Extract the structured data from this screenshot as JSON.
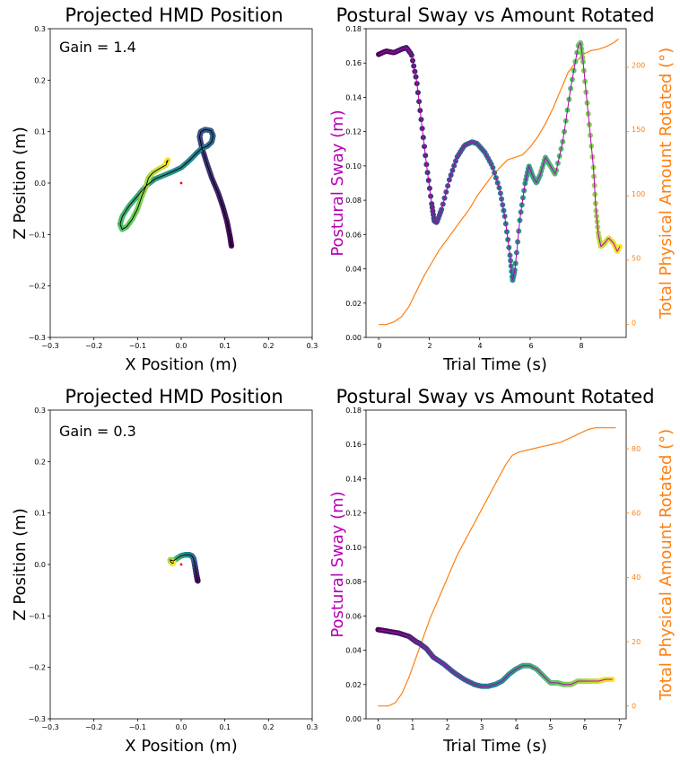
{
  "colors": {
    "sway_label": "#b700b7",
    "rotated": "#ff7f0e",
    "origin": "#ff0000",
    "axis": "#000000"
  },
  "chart_data": [
    {
      "type": "scatter",
      "title": "Projected HMD Position",
      "annotation": "Gain = 1.4",
      "xlabel": "X Position (m)",
      "ylabel": "Z Position (m)",
      "xlim": [
        -0.3,
        0.3
      ],
      "ylim": [
        -0.3,
        0.3
      ],
      "xticks": [
        "−0.3",
        "−0.2",
        "−0.1",
        "0.0",
        "0.1",
        "0.2",
        "0.3"
      ],
      "yticks": [
        "−0.3",
        "−0.2",
        "−0.1",
        "0.0",
        "0.1",
        "0.2",
        "0.3"
      ],
      "origin": [
        0.0,
        0.0
      ],
      "path": [
        [
          0.115,
          -0.122
        ],
        [
          0.112,
          -0.105
        ],
        [
          0.105,
          -0.075
        ],
        [
          0.095,
          -0.045
        ],
        [
          0.085,
          -0.02
        ],
        [
          0.07,
          0.01
        ],
        [
          0.058,
          0.04
        ],
        [
          0.047,
          0.07
        ],
        [
          0.042,
          0.09
        ],
        [
          0.045,
          0.1
        ],
        [
          0.055,
          0.104
        ],
        [
          0.068,
          0.102
        ],
        [
          0.073,
          0.092
        ],
        [
          0.07,
          0.08
        ],
        [
          0.06,
          0.072
        ],
        [
          0.048,
          0.068
        ],
        [
          0.035,
          0.058
        ],
        [
          0.02,
          0.045
        ],
        [
          0.0,
          0.03
        ],
        [
          -0.02,
          0.022
        ],
        [
          -0.04,
          0.015
        ],
        [
          -0.06,
          0.008
        ],
        [
          -0.08,
          -0.005
        ],
        [
          -0.1,
          -0.025
        ],
        [
          -0.12,
          -0.045
        ],
        [
          -0.135,
          -0.065
        ],
        [
          -0.14,
          -0.08
        ],
        [
          -0.135,
          -0.09
        ],
        [
          -0.125,
          -0.085
        ],
        [
          -0.112,
          -0.07
        ],
        [
          -0.1,
          -0.05
        ],
        [
          -0.09,
          -0.025
        ],
        [
          -0.08,
          -0.005
        ],
        [
          -0.075,
          0.01
        ],
        [
          -0.065,
          0.02
        ],
        [
          -0.05,
          0.028
        ],
        [
          -0.035,
          0.035
        ],
        [
          -0.03,
          0.045
        ],
        [
          -0.035,
          0.04
        ]
      ]
    },
    {
      "type": "line",
      "title": "Postural Sway vs Amount Rotated",
      "xlabel": "Trial Time (s)",
      "ylabel": "Postural Sway (m)",
      "y2label": "Total Physical Amount Rotated (°)",
      "xlim": [
        -0.5,
        9.8
      ],
      "ylim": [
        0.0,
        0.18
      ],
      "y2lim": [
        -10,
        230
      ],
      "xticks": [
        0,
        2,
        4,
        6,
        8
      ],
      "yticks": [
        "0.00",
        "0.02",
        "0.04",
        "0.06",
        "0.08",
        "0.10",
        "0.12",
        "0.14",
        "0.16",
        "0.18"
      ],
      "y2ticks": [
        0,
        50,
        100,
        150,
        200
      ],
      "series": [
        {
          "name": "Postural Sway",
          "x": [
            0,
            0.3,
            0.6,
            0.9,
            1.1,
            1.3,
            1.5,
            1.7,
            1.9,
            2.1,
            2.2,
            2.3,
            2.5,
            2.8,
            3.1,
            3.4,
            3.7,
            3.9,
            4.2,
            4.5,
            4.8,
            5.0,
            5.2,
            5.3,
            5.4,
            5.6,
            5.8,
            5.95,
            6.1,
            6.25,
            6.4,
            6.6,
            6.8,
            7.0,
            7.3,
            7.6,
            7.9,
            8.0,
            8.1,
            8.3,
            8.5,
            8.6,
            8.7,
            8.8,
            8.95,
            9.1,
            9.3,
            9.45,
            9.55
          ],
          "y": [
            0.165,
            0.167,
            0.166,
            0.168,
            0.169,
            0.165,
            0.15,
            0.125,
            0.1,
            0.078,
            0.068,
            0.067,
            0.075,
            0.092,
            0.105,
            0.112,
            0.114,
            0.113,
            0.108,
            0.1,
            0.086,
            0.07,
            0.048,
            0.033,
            0.04,
            0.07,
            0.09,
            0.1,
            0.094,
            0.09,
            0.095,
            0.105,
            0.1,
            0.095,
            0.115,
            0.145,
            0.17,
            0.172,
            0.16,
            0.13,
            0.1,
            0.075,
            0.06,
            0.053,
            0.055,
            0.058,
            0.055,
            0.05,
            0.053
          ]
        },
        {
          "name": "Total Physical Amount Rotated",
          "x": [
            0,
            0.3,
            0.6,
            0.9,
            1.2,
            1.5,
            1.8,
            2.1,
            2.4,
            2.7,
            3.0,
            3.3,
            3.6,
            3.9,
            4.2,
            4.5,
            4.8,
            5.1,
            5.4,
            5.7,
            6.0,
            6.3,
            6.6,
            6.9,
            7.2,
            7.5,
            7.8,
            8.1,
            8.4,
            8.7,
            9.0,
            9.3,
            9.5
          ],
          "y": [
            0,
            0,
            2,
            6,
            14,
            26,
            38,
            48,
            58,
            66,
            74,
            82,
            90,
            100,
            108,
            116,
            122,
            128,
            130,
            132,
            138,
            146,
            156,
            168,
            182,
            196,
            204,
            210,
            213,
            214,
            216,
            219,
            222
          ]
        }
      ]
    },
    {
      "type": "scatter",
      "title": "Projected HMD Position",
      "annotation": "Gain = 0.3",
      "xlabel": "X Position (m)",
      "ylabel": "Z Position (m)",
      "xlim": [
        -0.3,
        0.3
      ],
      "ylim": [
        -0.3,
        0.3
      ],
      "xticks": [
        "−0.3",
        "−0.2",
        "−0.1",
        "0.0",
        "0.1",
        "0.2",
        "0.3"
      ],
      "yticks": [
        "−0.3",
        "−0.2",
        "−0.1",
        "0.0",
        "0.1",
        "0.2",
        "0.3"
      ],
      "origin": [
        0.0,
        0.0
      ],
      "path": [
        [
          0.038,
          -0.032
        ],
        [
          0.036,
          -0.025
        ],
        [
          0.034,
          -0.015
        ],
        [
          0.032,
          -0.005
        ],
        [
          0.03,
          0.005
        ],
        [
          0.028,
          0.012
        ],
        [
          0.024,
          0.017
        ],
        [
          0.018,
          0.019
        ],
        [
          0.01,
          0.019
        ],
        [
          0.0,
          0.017
        ],
        [
          -0.008,
          0.013
        ],
        [
          -0.014,
          0.009
        ],
        [
          -0.018,
          0.007
        ],
        [
          -0.022,
          0.008
        ],
        [
          -0.025,
          0.009
        ],
        [
          -0.024,
          0.005
        ],
        [
          -0.02,
          0.002
        ],
        [
          -0.017,
          0.004
        ]
      ]
    },
    {
      "type": "line",
      "title": "Postural Sway vs Amount Rotated",
      "xlabel": "Trial Time (s)",
      "ylabel": "Postural Sway (m)",
      "y2label": "Total Physical Amount Rotated (°)",
      "xlim": [
        -0.35,
        7.2
      ],
      "ylim": [
        0.0,
        0.18
      ],
      "y2lim": [
        -4,
        92
      ],
      "xticks": [
        0,
        1,
        2,
        3,
        4,
        5,
        6,
        7
      ],
      "yticks": [
        "0.00",
        "0.02",
        "0.04",
        "0.06",
        "0.08",
        "0.10",
        "0.12",
        "0.14",
        "0.16",
        "0.18"
      ],
      "y2ticks": [
        0,
        20,
        40,
        60,
        80
      ],
      "series": [
        {
          "name": "Postural Sway",
          "x": [
            0,
            0.3,
            0.6,
            0.9,
            1.1,
            1.2,
            1.4,
            1.6,
            1.9,
            2.2,
            2.5,
            2.8,
            3.0,
            3.2,
            3.4,
            3.6,
            3.8,
            4.0,
            4.2,
            4.4,
            4.6,
            4.8,
            5.0,
            5.2,
            5.4,
            5.6,
            5.8,
            6.0,
            6.2,
            6.4,
            6.6,
            6.8
          ],
          "y": [
            0.052,
            0.051,
            0.05,
            0.048,
            0.045,
            0.044,
            0.041,
            0.036,
            0.032,
            0.027,
            0.023,
            0.02,
            0.019,
            0.019,
            0.02,
            0.022,
            0.026,
            0.029,
            0.031,
            0.031,
            0.029,
            0.025,
            0.021,
            0.021,
            0.02,
            0.02,
            0.022,
            0.022,
            0.022,
            0.022,
            0.023,
            0.023
          ]
        },
        {
          "name": "Total Physical Amount Rotated",
          "x": [
            0,
            0.3,
            0.5,
            0.7,
            0.9,
            1.1,
            1.3,
            1.5,
            1.7,
            1.9,
            2.1,
            2.3,
            2.5,
            2.7,
            2.9,
            3.1,
            3.3,
            3.5,
            3.7,
            3.9,
            4.1,
            4.3,
            4.5,
            4.7,
            4.9,
            5.1,
            5.3,
            5.5,
            5.7,
            5.9,
            6.1,
            6.3,
            6.5,
            6.9
          ],
          "y": [
            0,
            0,
            1,
            4,
            9,
            15,
            21,
            27,
            32,
            37,
            42,
            47,
            51,
            55,
            59,
            63,
            67,
            71,
            75,
            78,
            79,
            79.5,
            80,
            80.5,
            81,
            81.5,
            82,
            83,
            84,
            85,
            86,
            86.5,
            86.5,
            86.5
          ]
        }
      ]
    }
  ]
}
